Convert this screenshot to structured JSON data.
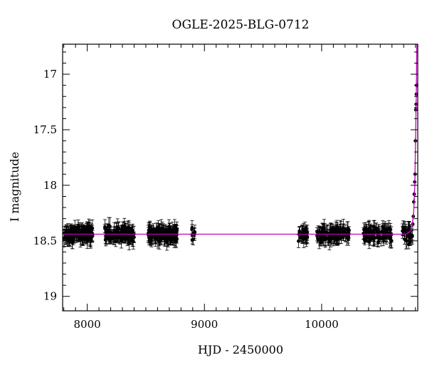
{
  "chart_data": {
    "type": "scatter",
    "title": "OGLE-2025-BLG-0712",
    "xlabel": "HJD - 2450000",
    "ylabel": "I magnitude",
    "xlim": [
      7790,
      10820
    ],
    "ylim": [
      19.13,
      16.73
    ],
    "y_inverted": true,
    "x_ticks": [
      8000,
      9000,
      10000
    ],
    "y_ticks": [
      17,
      17.5,
      18,
      18.5,
      19
    ],
    "x_ticklabels": [
      "8000",
      "9000",
      "10000"
    ],
    "y_ticklabels": [
      "17",
      "17.5",
      "18",
      "18.5",
      "19"
    ],
    "grid": false,
    "baseline_mag": 18.44,
    "model_color": "#c000c0",
    "point_color": "#000000",
    "data_segments": [
      {
        "x_start": 7800,
        "x_end": 8050,
        "n": 140
      },
      {
        "x_start": 8150,
        "x_end": 8400,
        "n": 130
      },
      {
        "x_start": 8520,
        "x_end": 8770,
        "n": 140
      },
      {
        "x_start": 8880,
        "x_end": 8920,
        "n": 8
      },
      {
        "x_start": 9800,
        "x_end": 9880,
        "n": 30
      },
      {
        "x_start": 9960,
        "x_end": 10240,
        "n": 110
      },
      {
        "x_start": 10350,
        "x_end": 10600,
        "n": 85
      },
      {
        "x_start": 10690,
        "x_end": 10775,
        "n": 30
      }
    ],
    "rise_points": [
      {
        "x": 10778,
        "y": 18.35
      },
      {
        "x": 10782,
        "y": 18.28
      },
      {
        "x": 10786,
        "y": 18.15
      },
      {
        "x": 10790,
        "y": 18.08
      },
      {
        "x": 10794,
        "y": 17.97
      },
      {
        "x": 10797,
        "y": 17.9
      },
      {
        "x": 10800,
        "y": 17.6
      },
      {
        "x": 10803,
        "y": 17.32
      },
      {
        "x": 10806,
        "y": 17.27
      },
      {
        "x": 10808,
        "y": 17.18
      },
      {
        "x": 10810,
        "y": 17.1
      }
    ],
    "model_curve": [
      {
        "x": 7790,
        "y": 18.44
      },
      {
        "x": 10720,
        "y": 18.44
      },
      {
        "x": 10750,
        "y": 18.42
      },
      {
        "x": 10770,
        "y": 18.38
      },
      {
        "x": 10785,
        "y": 18.25
      },
      {
        "x": 10795,
        "y": 18.0
      },
      {
        "x": 10802,
        "y": 17.55
      },
      {
        "x": 10808,
        "y": 17.15
      },
      {
        "x": 10812,
        "y": 16.73
      }
    ]
  }
}
